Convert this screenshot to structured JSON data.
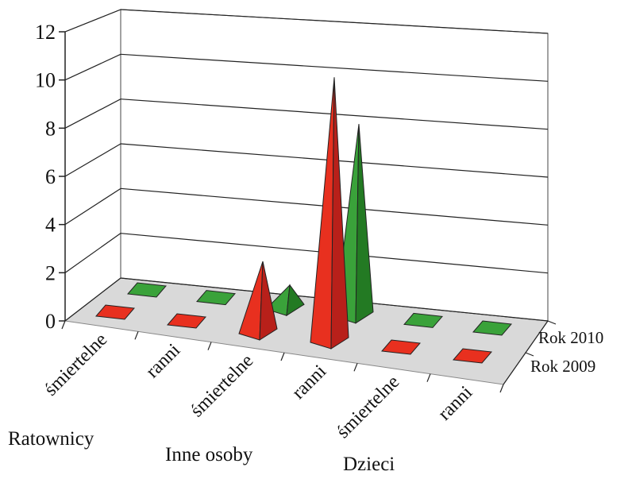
{
  "colors": {
    "series_2009": "#e8301f",
    "series_2009_dark": "#b8201a",
    "series_2010": "#3aa23a",
    "series_2010_dark": "#237a23",
    "floor": "#d9d9d9",
    "wall": "#ffffff",
    "grid": "#222222"
  },
  "chart_data": {
    "type": "bar",
    "subtype": "3d-pyramid",
    "title": "",
    "xlabel": "",
    "ylabel": "",
    "ylim": [
      0,
      12
    ],
    "yticks": [
      "0",
      "2",
      "4",
      "6",
      "8",
      "10",
      "12"
    ],
    "grid": true,
    "categories": [
      "śmiertelne",
      "ranni",
      "śmiertelne",
      "ranni",
      "śmiertelne",
      "ranni"
    ],
    "groups": [
      {
        "label": "Ratownicy",
        "categories": [
          0,
          1
        ]
      },
      {
        "label": "Inne osoby",
        "categories": [
          2,
          3
        ]
      },
      {
        "label": "Dzieci",
        "categories": [
          4,
          5
        ]
      }
    ],
    "series": [
      {
        "name": "Rok 2009",
        "color": "#e8301f",
        "values": [
          0,
          0,
          3,
          11,
          0,
          0
        ]
      },
      {
        "name": "Rok 2010",
        "color": "#3aa23a",
        "values": [
          0,
          0,
          1,
          8,
          0,
          0
        ]
      }
    ]
  }
}
